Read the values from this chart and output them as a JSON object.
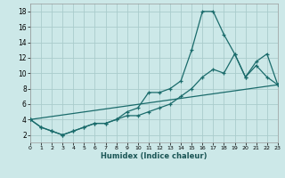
{
  "xlabel": "Humidex (Indice chaleur)",
  "bg_color": "#cce8e8",
  "grid_color": "#aacccc",
  "line_color": "#1a6b6b",
  "xlim": [
    0,
    23
  ],
  "ylim": [
    1,
    19
  ],
  "xticks": [
    0,
    1,
    2,
    3,
    4,
    5,
    6,
    7,
    8,
    9,
    10,
    11,
    12,
    13,
    14,
    15,
    16,
    17,
    18,
    19,
    20,
    21,
    22,
    23
  ],
  "yticks": [
    2,
    4,
    6,
    8,
    10,
    12,
    14,
    16,
    18
  ],
  "line1_x": [
    0,
    1,
    2,
    3,
    4,
    5,
    6,
    7,
    8,
    9,
    10,
    11,
    12,
    13,
    14,
    15,
    16,
    17,
    18,
    19,
    20,
    21,
    22,
    23
  ],
  "line1_y": [
    4,
    3,
    2.5,
    2,
    2.5,
    3,
    3.5,
    3.5,
    4,
    5,
    5.5,
    7.5,
    7.5,
    8,
    9,
    13,
    18,
    18,
    15,
    12.5,
    9.5,
    11.5,
    12.5,
    8.5
  ],
  "line2_x": [
    0,
    1,
    2,
    3,
    4,
    5,
    6,
    7,
    8,
    9,
    10,
    11,
    12,
    13,
    14,
    15,
    16,
    17,
    18,
    19,
    20,
    21,
    22,
    23
  ],
  "line2_y": [
    4,
    3,
    2.5,
    2,
    2.5,
    3,
    3.5,
    3.5,
    4,
    4.5,
    4.5,
    5,
    5.5,
    6,
    7,
    8,
    9.5,
    10.5,
    10,
    12.5,
    9.5,
    11,
    9.5,
    8.5
  ],
  "line3_x": [
    0,
    23
  ],
  "line3_y": [
    4,
    8.5
  ]
}
